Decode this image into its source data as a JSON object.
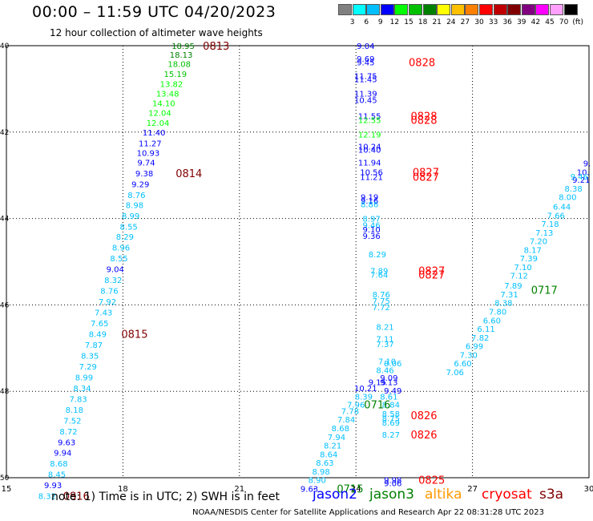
{
  "title": "00:00 – 11:59 UTC 04/20/2023",
  "subtitle": "12 hour collection of altimeter wave heights",
  "legend": {
    "unit": "(ft)",
    "bins": [
      {
        "label": "3",
        "color": "#808080"
      },
      {
        "label": "6",
        "color": "#00ffff"
      },
      {
        "label": "9",
        "color": "#00bfff"
      },
      {
        "label": "12",
        "color": "#0000ff"
      },
      {
        "label": "15",
        "color": "#00ff00"
      },
      {
        "label": "18",
        "color": "#00c000"
      },
      {
        "label": "21",
        "color": "#008000"
      },
      {
        "label": "24",
        "color": "#ffff00"
      },
      {
        "label": "27",
        "color": "#ffc000"
      },
      {
        "label": "30",
        "color": "#ff8000"
      },
      {
        "label": "33",
        "color": "#ff0000"
      },
      {
        "label": "36",
        "color": "#c00000"
      },
      {
        "label": "39",
        "color": "#800000"
      },
      {
        "label": "42",
        "color": "#800080"
      },
      {
        "label": "45",
        "color": "#ff00ff"
      },
      {
        "label": "70",
        "color": "#ffa0ff"
      },
      {
        "label": "",
        "color": "#000000"
      }
    ]
  },
  "note": "note:  1) Time is in UTC;  2) SWH is in feet",
  "satellites": [
    {
      "name": "jason2",
      "color": "#0000ff"
    },
    {
      "name": "jason3",
      "color": "#008000"
    },
    {
      "name": "altika",
      "color": "#ff9900"
    },
    {
      "name": "cryosat",
      "color": "#ff0000"
    },
    {
      "name": "s3a",
      "color": "#800000"
    }
  ],
  "footer": "NOAA/NESDIS Center for Satellite Applications and Research    Apr 22 08:31:28 UTC 2023",
  "chart_data": {
    "type": "scatter",
    "xlim": [
      15,
      30
    ],
    "ylim": [
      -50,
      -40
    ],
    "x_ticks": [
      "15",
      "18",
      "21",
      "24",
      "27",
      "30"
    ],
    "y_ticks": [
      "-40",
      "-42",
      "-44",
      "-46",
      "-48",
      "-50"
    ],
    "grid": true,
    "labels": [
      {
        "x": 19.55,
        "y": -40.0,
        "text": "18.95",
        "color": "#008000"
      },
      {
        "x": 20.4,
        "y": -40.0,
        "text": "0813",
        "color": "#800000",
        "big": true
      },
      {
        "x": 19.5,
        "y": -40.2,
        "text": "18.13",
        "color": "#008000"
      },
      {
        "x": 19.45,
        "y": -40.42,
        "text": "18.08",
        "color": "#00c000"
      },
      {
        "x": 19.35,
        "y": -40.65,
        "text": "15.19",
        "color": "#00c000"
      },
      {
        "x": 19.25,
        "y": -40.88,
        "text": "13.82",
        "color": "#00ff00"
      },
      {
        "x": 19.15,
        "y": -41.1,
        "text": "13.48",
        "color": "#00ff00"
      },
      {
        "x": 19.05,
        "y": -41.33,
        "text": "14.10",
        "color": "#00ff00"
      },
      {
        "x": 18.95,
        "y": -41.55,
        "text": "12.04",
        "color": "#00ff00"
      },
      {
        "x": 18.9,
        "y": -41.78,
        "text": "12.04",
        "color": "#00ff00"
      },
      {
        "x": 18.8,
        "y": -42.0,
        "text": "11.40",
        "color": "#0000ff"
      },
      {
        "x": 18.7,
        "y": -42.25,
        "text": "11.27",
        "color": "#0000ff"
      },
      {
        "x": 18.65,
        "y": -42.48,
        "text": "10.93",
        "color": "#0000ff"
      },
      {
        "x": 18.6,
        "y": -42.7,
        "text": "9.74",
        "color": "#0000ff"
      },
      {
        "x": 18.55,
        "y": -42.95,
        "text": "9.38",
        "color": "#0000ff"
      },
      {
        "x": 19.7,
        "y": -42.95,
        "text": "0814",
        "color": "#800000",
        "big": true
      },
      {
        "x": 18.45,
        "y": -43.2,
        "text": "9.29",
        "color": "#0000ff"
      },
      {
        "x": 18.35,
        "y": -43.45,
        "text": "8.76",
        "color": "#00bfff"
      },
      {
        "x": 18.3,
        "y": -43.68,
        "text": "8.98",
        "color": "#00bfff"
      },
      {
        "x": 18.2,
        "y": -43.93,
        "text": "8.99",
        "color": "#00bfff"
      },
      {
        "x": 18.15,
        "y": -44.18,
        "text": "8.55",
        "color": "#00bfff"
      },
      {
        "x": 18.05,
        "y": -44.42,
        "text": "8.29",
        "color": "#00bfff"
      },
      {
        "x": 17.95,
        "y": -44.67,
        "text": "8.96",
        "color": "#00bfff"
      },
      {
        "x": 17.9,
        "y": -44.92,
        "text": "8.55",
        "color": "#00bfff"
      },
      {
        "x": 17.8,
        "y": -45.17,
        "text": "9.04",
        "color": "#0000ff"
      },
      {
        "x": 17.75,
        "y": -45.42,
        "text": "8.32",
        "color": "#00bfff"
      },
      {
        "x": 17.65,
        "y": -45.67,
        "text": "8.76",
        "color": "#00bfff"
      },
      {
        "x": 17.6,
        "y": -45.92,
        "text": "7.92",
        "color": "#00bfff"
      },
      {
        "x": 17.5,
        "y": -46.17,
        "text": "7.43",
        "color": "#00bfff"
      },
      {
        "x": 17.4,
        "y": -46.42,
        "text": "7.65",
        "color": "#00bfff"
      },
      {
        "x": 17.35,
        "y": -46.67,
        "text": "8.49",
        "color": "#00bfff"
      },
      {
        "x": 18.3,
        "y": -46.67,
        "text": "0815",
        "color": "#800000",
        "big": true
      },
      {
        "x": 17.25,
        "y": -46.92,
        "text": "7.87",
        "color": "#00bfff"
      },
      {
        "x": 17.15,
        "y": -47.17,
        "text": "8.35",
        "color": "#00bfff"
      },
      {
        "x": 17.1,
        "y": -47.42,
        "text": "7.29",
        "color": "#00bfff"
      },
      {
        "x": 17.0,
        "y": -47.67,
        "text": "8.99",
        "color": "#00bfff"
      },
      {
        "x": 16.95,
        "y": -47.92,
        "text": "8.34",
        "color": "#00bfff"
      },
      {
        "x": 16.85,
        "y": -48.17,
        "text": "7.83",
        "color": "#00bfff"
      },
      {
        "x": 16.75,
        "y": -48.42,
        "text": "8.18",
        "color": "#00bfff"
      },
      {
        "x": 16.7,
        "y": -48.67,
        "text": "7.52",
        "color": "#00bfff"
      },
      {
        "x": 16.6,
        "y": -48.92,
        "text": "8.72",
        "color": "#00bfff"
      },
      {
        "x": 16.55,
        "y": -49.17,
        "text": "9.63",
        "color": "#0000ff"
      },
      {
        "x": 16.45,
        "y": -49.42,
        "text": "9.94",
        "color": "#0000ff"
      },
      {
        "x": 16.35,
        "y": -49.67,
        "text": "8.68",
        "color": "#00bfff"
      },
      {
        "x": 16.3,
        "y": -49.92,
        "text": "8.45",
        "color": "#00bfff"
      },
      {
        "x": 16.2,
        "y": -50.17,
        "text": "9.93",
        "color": "#0000ff"
      },
      {
        "x": 16.05,
        "y": -50.42,
        "text": "8.32",
        "color": "#00bfff"
      },
      {
        "x": 16.8,
        "y": -50.42,
        "text": "0816",
        "color": "#800000",
        "big": true
      },
      {
        "x": 24.25,
        "y": -40.0,
        "text": "9.04",
        "color": "#0000ff"
      },
      {
        "x": 24.25,
        "y": -40.3,
        "text": "9.69",
        "color": "#0000ff"
      },
      {
        "x": 24.25,
        "y": -40.38,
        "text": "9.45",
        "color": "#0000ff"
      },
      {
        "x": 25.7,
        "y": -40.38,
        "text": "0828",
        "color": "#ff0000",
        "big": true
      },
      {
        "x": 24.25,
        "y": -40.7,
        "text": "11.75",
        "color": "#0000ff"
      },
      {
        "x": 24.25,
        "y": -40.77,
        "text": "11.45",
        "color": "#0000ff"
      },
      {
        "x": 24.25,
        "y": -41.1,
        "text": "11.39",
        "color": "#0000ff"
      },
      {
        "x": 24.25,
        "y": -41.25,
        "text": "10.45",
        "color": "#0000ff"
      },
      {
        "x": 24.35,
        "y": -41.62,
        "text": "11.55",
        "color": "#0000ff"
      },
      {
        "x": 24.35,
        "y": -41.72,
        "text": "12.55",
        "color": "#00ff00"
      },
      {
        "x": 25.75,
        "y": -41.62,
        "text": "0828",
        "color": "#ff0000",
        "big": true
      },
      {
        "x": 25.75,
        "y": -41.72,
        "text": "0828",
        "color": "#ff0000",
        "big": true
      },
      {
        "x": 24.35,
        "y": -42.05,
        "text": "12.19",
        "color": "#00ff00"
      },
      {
        "x": 24.35,
        "y": -42.33,
        "text": "10.24",
        "color": "#0000ff"
      },
      {
        "x": 24.35,
        "y": -42.4,
        "text": "10.40",
        "color": "#0000ff"
      },
      {
        "x": 24.35,
        "y": -42.7,
        "text": "11.94",
        "color": "#0000ff"
      },
      {
        "x": 24.4,
        "y": -42.92,
        "text": "10.56",
        "color": "#0000ff"
      },
      {
        "x": 24.4,
        "y": -43.03,
        "text": "11.21",
        "color": "#0000ff"
      },
      {
        "x": 25.8,
        "y": -42.92,
        "text": "0827",
        "color": "#ff0000",
        "big": true
      },
      {
        "x": 25.8,
        "y": -43.03,
        "text": "0827",
        "color": "#ff0000",
        "big": true
      },
      {
        "x": 24.35,
        "y": -43.5,
        "text": "9.19",
        "color": "#0000ff"
      },
      {
        "x": 24.35,
        "y": -43.58,
        "text": "9.16",
        "color": "#0000ff"
      },
      {
        "x": 24.35,
        "y": -43.66,
        "text": "8.86",
        "color": "#00bfff"
      },
      {
        "x": 24.4,
        "y": -44.0,
        "text": "8.97",
        "color": "#00bfff"
      },
      {
        "x": 24.4,
        "y": -44.15,
        "text": "9.46",
        "color": "#00bfff"
      },
      {
        "x": 24.4,
        "y": -44.25,
        "text": "9.10",
        "color": "#0000ff"
      },
      {
        "x": 24.4,
        "y": -44.4,
        "text": "9.36",
        "color": "#0000ff"
      },
      {
        "x": 24.55,
        "y": -44.82,
        "text": "8.29",
        "color": "#00bfff"
      },
      {
        "x": 24.6,
        "y": -45.2,
        "text": "7.89",
        "color": "#00bfff"
      },
      {
        "x": 24.6,
        "y": -45.3,
        "text": "7.64",
        "color": "#00bfff"
      },
      {
        "x": 25.95,
        "y": -45.2,
        "text": "0827",
        "color": "#ff0000",
        "big": true
      },
      {
        "x": 25.95,
        "y": -45.3,
        "text": "0827",
        "color": "#ff0000",
        "big": true
      },
      {
        "x": 24.65,
        "y": -45.75,
        "text": "8.76",
        "color": "#00bfff"
      },
      {
        "x": 24.65,
        "y": -45.9,
        "text": "7.75",
        "color": "#00bfff"
      },
      {
        "x": 24.65,
        "y": -46.05,
        "text": "7.72",
        "color": "#00bfff"
      },
      {
        "x": 24.75,
        "y": -46.5,
        "text": "8.21",
        "color": "#00bfff"
      },
      {
        "x": 24.75,
        "y": -46.78,
        "text": "7.11",
        "color": "#00bfff"
      },
      {
        "x": 24.75,
        "y": -46.9,
        "text": "7.37",
        "color": "#00bfff"
      },
      {
        "x": 24.8,
        "y": -47.3,
        "text": "7.10",
        "color": "#00bfff"
      },
      {
        "x": 24.95,
        "y": -47.35,
        "text": "8.06",
        "color": "#00bfff"
      },
      {
        "x": 24.75,
        "y": -47.5,
        "text": "8.46",
        "color": "#00bfff"
      },
      {
        "x": 24.85,
        "y": -47.68,
        "text": "9.09",
        "color": "#0000ff"
      },
      {
        "x": 24.85,
        "y": -47.78,
        "text": "9.13",
        "color": "#0000ff"
      },
      {
        "x": 24.55,
        "y": -47.78,
        "text": "9.15",
        "color": "#0000ff"
      },
      {
        "x": 24.25,
        "y": -47.92,
        "text": "10.21",
        "color": "#0000ff"
      },
      {
        "x": 24.95,
        "y": -47.98,
        "text": "9.49",
        "color": "#0000ff"
      },
      {
        "x": 24.2,
        "y": -48.12,
        "text": "8.39",
        "color": "#00bfff"
      },
      {
        "x": 24.85,
        "y": -48.12,
        "text": "8.61",
        "color": "#00bfff"
      },
      {
        "x": 24.9,
        "y": -48.3,
        "text": "8.84",
        "color": "#00bfff"
      },
      {
        "x": 24.0,
        "y": -48.3,
        "text": "7.96",
        "color": "#00bfff"
      },
      {
        "x": 24.55,
        "y": -48.3,
        "text": "0716",
        "color": "#008000",
        "big": true
      },
      {
        "x": 24.9,
        "y": -48.52,
        "text": "8.58",
        "color": "#00bfff"
      },
      {
        "x": 24.9,
        "y": -48.62,
        "text": "8.75",
        "color": "#00bfff"
      },
      {
        "x": 24.9,
        "y": -48.72,
        "text": "8.69",
        "color": "#00bfff"
      },
      {
        "x": 25.75,
        "y": -48.55,
        "text": "0826",
        "color": "#ff0000",
        "big": true
      },
      {
        "x": 24.9,
        "y": -49.0,
        "text": "8.27",
        "color": "#00bfff"
      },
      {
        "x": 25.75,
        "y": -49.0,
        "text": "0826",
        "color": "#ff0000",
        "big": true
      },
      {
        "x": 24.95,
        "y": -50.05,
        "text": "9.98",
        "color": "#0000ff"
      },
      {
        "x": 24.95,
        "y": -50.12,
        "text": "9.06",
        "color": "#0000ff"
      },
      {
        "x": 25.95,
        "y": -50.05,
        "text": "0825",
        "color": "#ff0000",
        "big": true
      },
      {
        "x": 23.85,
        "y": -48.45,
        "text": "7.78",
        "color": "#00bfff"
      },
      {
        "x": 23.75,
        "y": -48.65,
        "text": "7.84",
        "color": "#00bfff"
      },
      {
        "x": 23.6,
        "y": -48.85,
        "text": "8.68",
        "color": "#00bfff"
      },
      {
        "x": 23.5,
        "y": -49.05,
        "text": "7.94",
        "color": "#00bfff"
      },
      {
        "x": 23.4,
        "y": -49.25,
        "text": "8.21",
        "color": "#00bfff"
      },
      {
        "x": 23.3,
        "y": -49.45,
        "text": "8.64",
        "color": "#00bfff"
      },
      {
        "x": 23.2,
        "y": -49.65,
        "text": "8.63",
        "color": "#00bfff"
      },
      {
        "x": 23.1,
        "y": -49.85,
        "text": "8.98",
        "color": "#00bfff"
      },
      {
        "x": 23.0,
        "y": -50.05,
        "text": "8.90",
        "color": "#00bfff"
      },
      {
        "x": 22.8,
        "y": -50.25,
        "text": "9.63",
        "color": "#0000ff"
      },
      {
        "x": 23.85,
        "y": -50.25,
        "text": "0715",
        "color": "#008000",
        "big": true
      },
      {
        "x": 29.95,
        "y": -42.72,
        "text": "9.",
        "color": "#0000ff"
      },
      {
        "x": 29.85,
        "y": -42.92,
        "text": "10.",
        "color": "#0000ff"
      },
      {
        "x": 29.8,
        "y": -43.1,
        "text": "9.21",
        "color": "#0000ff"
      },
      {
        "x": 29.75,
        "y": -43.02,
        "text": "9.46",
        "color": "#00bfff"
      },
      {
        "x": 29.6,
        "y": -43.3,
        "text": "8.38",
        "color": "#00bfff"
      },
      {
        "x": 29.45,
        "y": -43.5,
        "text": "8.00",
        "color": "#00bfff"
      },
      {
        "x": 29.3,
        "y": -43.72,
        "text": "6.44",
        "color": "#00bfff"
      },
      {
        "x": 29.15,
        "y": -43.92,
        "text": "7.66",
        "color": "#00bfff"
      },
      {
        "x": 29.0,
        "y": -44.12,
        "text": "7.18",
        "color": "#00bfff"
      },
      {
        "x": 28.85,
        "y": -44.32,
        "text": "7.13",
        "color": "#00bfff"
      },
      {
        "x": 28.7,
        "y": -44.52,
        "text": "7.20",
        "color": "#00bfff"
      },
      {
        "x": 28.55,
        "y": -44.72,
        "text": "8.17",
        "color": "#00bfff"
      },
      {
        "x": 28.45,
        "y": -44.92,
        "text": "7.39",
        "color": "#00bfff"
      },
      {
        "x": 28.3,
        "y": -45.12,
        "text": "7.10",
        "color": "#00bfff"
      },
      {
        "x": 28.2,
        "y": -45.32,
        "text": "7.12",
        "color": "#00bfff"
      },
      {
        "x": 28.05,
        "y": -45.55,
        "text": "7.89",
        "color": "#00bfff"
      },
      {
        "x": 28.85,
        "y": -45.65,
        "text": "0717",
        "color": "#008000",
        "big": true
      },
      {
        "x": 27.95,
        "y": -45.75,
        "text": "7.31",
        "color": "#00bfff"
      },
      {
        "x": 27.8,
        "y": -45.95,
        "text": "8.38",
        "color": "#00bfff"
      },
      {
        "x": 27.65,
        "y": -46.15,
        "text": "7.80",
        "color": "#00bfff"
      },
      {
        "x": 27.5,
        "y": -46.35,
        "text": "6.60",
        "color": "#00bfff"
      },
      {
        "x": 27.35,
        "y": -46.55,
        "text": "6.11",
        "color": "#00bfff"
      },
      {
        "x": 27.2,
        "y": -46.75,
        "text": "7.82",
        "color": "#00bfff"
      },
      {
        "x": 27.05,
        "y": -46.95,
        "text": "6.99",
        "color": "#00bfff"
      },
      {
        "x": 26.9,
        "y": -47.15,
        "text": "7.30",
        "color": "#00bfff"
      },
      {
        "x": 26.75,
        "y": -47.35,
        "text": "6.60",
        "color": "#00bfff"
      },
      {
        "x": 26.55,
        "y": -47.55,
        "text": "7.06",
        "color": "#00bfff"
      }
    ]
  }
}
